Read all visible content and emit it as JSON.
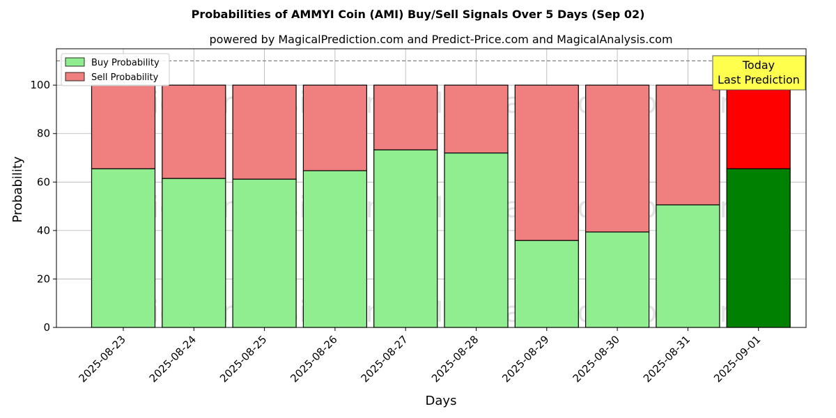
{
  "chart_data": {
    "type": "bar",
    "stacked": true,
    "title": "Probabilities of AMMYI Coin (AMI) Buy/Sell Signals Over 5 Days (Sep 02)",
    "subtitle": "powered by MagicalPrediction.com and Predict-Price.com and MagicalAnalysis.com",
    "xlabel": "Days",
    "ylabel": "Probability",
    "ylim": [
      0,
      115
    ],
    "yticks": [
      0,
      20,
      40,
      60,
      80,
      100
    ],
    "grid": true,
    "legend_position": "top-left",
    "reference_line": 110,
    "categories": [
      "2025-08-23",
      "2025-08-24",
      "2025-08-25",
      "2025-08-26",
      "2025-08-27",
      "2025-08-28",
      "2025-08-29",
      "2025-08-30",
      "2025-08-31",
      "2025-09-01"
    ],
    "series": [
      {
        "name": "Buy Probability",
        "values": [
          65.5,
          61.5,
          61.2,
          64.7,
          73.3,
          72.0,
          35.9,
          39.4,
          50.6,
          65.5
        ],
        "color": "#90ee90",
        "highlight_color": "#008000"
      },
      {
        "name": "Sell Probability",
        "values": [
          34.5,
          38.5,
          38.8,
          35.3,
          26.7,
          28.0,
          64.1,
          60.6,
          49.4,
          34.5
        ],
        "color": "#f08080",
        "highlight_color": "#ff0000"
      }
    ],
    "highlight_index": 9,
    "annotation": {
      "line1": "Today",
      "line2": "Last Prediction",
      "background": "#ffff4d"
    },
    "watermarks": [
      "MagicalAnalysis.com",
      "MagicalPrediction.com"
    ]
  }
}
